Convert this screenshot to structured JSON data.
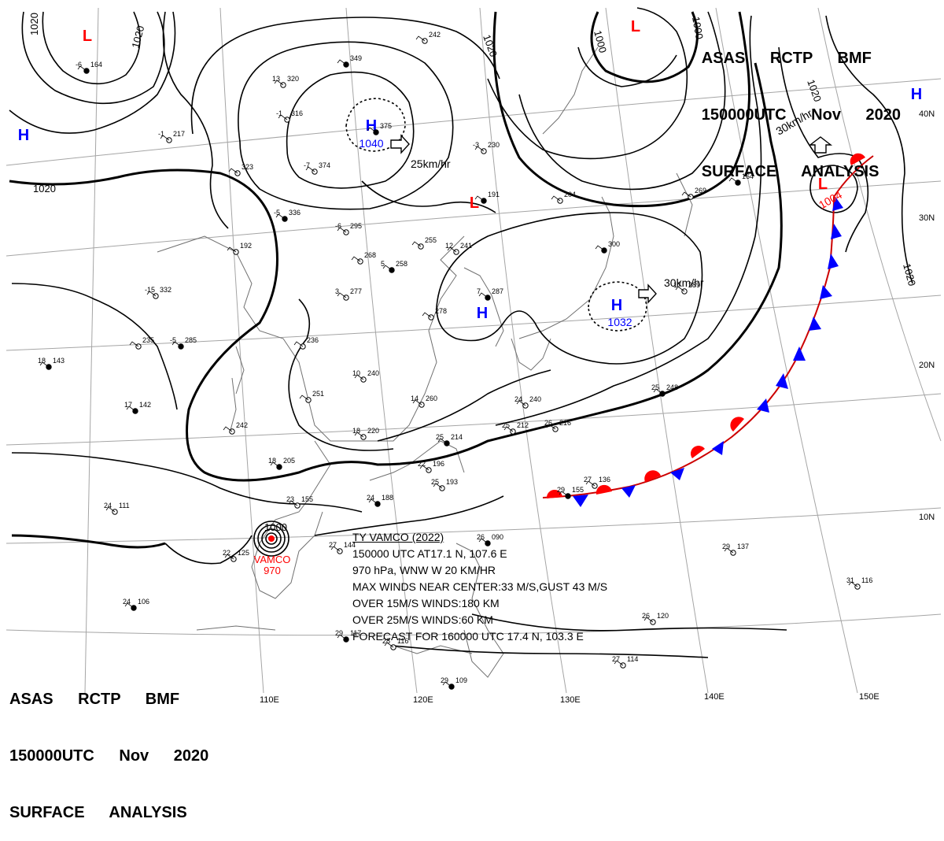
{
  "header": {
    "line1": "ASAS RCTP BMF",
    "line2": "150000UTC Nov 2020",
    "line3": "SURFACE ANALYSIS"
  },
  "pressure_centers": [
    {
      "type": "H",
      "value": "1040",
      "motion": "25km/hr"
    },
    {
      "type": "H",
      "value": "1032",
      "motion": "30km/hr"
    },
    {
      "type": "H",
      "value": ""
    },
    {
      "type": "H",
      "value": ""
    },
    {
      "type": "H",
      "value": ""
    },
    {
      "type": "L",
      "value": "1004",
      "motion": "30km/hr"
    },
    {
      "type": "L",
      "value": ""
    },
    {
      "type": "L",
      "value": ""
    },
    {
      "type": "L",
      "value": ""
    }
  ],
  "isobar_labels": [
    "1020",
    "1020",
    "1020",
    "1020",
    "1000",
    "1000",
    "1020",
    "1020",
    "1000"
  ],
  "typhoon": {
    "name_label": "VAMCO",
    "pressure_label": "970",
    "center_isobar": "1000",
    "bulletin": {
      "line1": "TY VAMCO (2022)",
      "line2": "150000 UTC AT17.1 N, 107.6 E",
      "line3": "970 hPa, WNW W 20 KM/HR",
      "line4": "MAX WINDS NEAR CENTER:33 M/S,GUST 43 M/S",
      "line5": "OVER 15M/S WINDS:180 KM",
      "line6": "OVER 25M/S WINDS:60 KM",
      "line7": "FORECAST FOR 160000 UTC 17.4 N, 103.3 E"
    }
  },
  "longitude_labels": [
    "110E",
    "120E",
    "130E",
    "140E",
    "150E"
  ],
  "latitude_labels": [
    "40N",
    "30N",
    "20N",
    "10N"
  ],
  "station_plots": [
    {
      "t": "-6",
      "p": "164"
    },
    {
      "t": "-1",
      "p": "217"
    },
    {
      "t": "13",
      "p": "320"
    },
    {
      "t": "",
      "p": "349"
    },
    {
      "t": "",
      "p": "242"
    },
    {
      "t": "-1",
      "p": "316"
    },
    {
      "t": "",
      "p": "375"
    },
    {
      "t": "-7",
      "p": "374"
    },
    {
      "t": "",
      "p": "323"
    },
    {
      "t": "-5",
      "p": "336"
    },
    {
      "t": "-6",
      "p": "295"
    },
    {
      "t": "-3",
      "p": "230"
    },
    {
      "t": "",
      "p": "191"
    },
    {
      "t": "",
      "p": "204"
    },
    {
      "t": "",
      "p": "269"
    },
    {
      "t": "",
      "p": "164"
    },
    {
      "t": "",
      "p": "192"
    },
    {
      "t": "",
      "p": "268"
    },
    {
      "t": "5",
      "p": "258"
    },
    {
      "t": "",
      "p": "255"
    },
    {
      "t": "12",
      "p": "241"
    },
    {
      "t": "",
      "p": "300"
    },
    {
      "t": "-15",
      "p": "332"
    },
    {
      "t": "3",
      "p": "277"
    },
    {
      "t": "7",
      "p": "287"
    },
    {
      "t": "17",
      "p": "289"
    },
    {
      "t": "",
      "p": "235"
    },
    {
      "t": "-5",
      "p": "285"
    },
    {
      "t": "",
      "p": "236"
    },
    {
      "t": "",
      "p": "278"
    },
    {
      "t": "18",
      "p": "143"
    },
    {
      "t": "10",
      "p": "240"
    },
    {
      "t": "",
      "p": "251"
    },
    {
      "t": "17",
      "p": "142"
    },
    {
      "t": "14",
      "p": "260"
    },
    {
      "t": "24",
      "p": "240"
    },
    {
      "t": "25",
      "p": "248"
    },
    {
      "t": "",
      "p": "242"
    },
    {
      "t": "18",
      "p": "220"
    },
    {
      "t": "25",
      "p": "214"
    },
    {
      "t": "25",
      "p": "212"
    },
    {
      "t": "26",
      "p": "216"
    },
    {
      "t": "18",
      "p": "205"
    },
    {
      "t": "22",
      "p": "196"
    },
    {
      "t": "25",
      "p": "193"
    },
    {
      "t": "24",
      "p": "188"
    },
    {
      "t": "24",
      "p": "111"
    },
    {
      "t": "27",
      "p": "136"
    },
    {
      "t": "29",
      "p": "155"
    },
    {
      "t": "23",
      "p": "155"
    },
    {
      "t": "27",
      "p": "144"
    },
    {
      "t": "26",
      "p": "090"
    },
    {
      "t": "29",
      "p": "137"
    },
    {
      "t": "22",
      "p": "125"
    },
    {
      "t": "24",
      "p": "106"
    },
    {
      "t": "31",
      "p": "116"
    },
    {
      "t": "26",
      "p": "120"
    },
    {
      "t": "29",
      "p": "117"
    },
    {
      "t": "28",
      "p": "116"
    },
    {
      "t": "27",
      "p": "114"
    },
    {
      "t": "29",
      "p": "109"
    }
  ],
  "colors": {
    "high": "#0000ff",
    "low": "#ff0000",
    "warm_front": "#ff0000",
    "cold_front": "#0000ff",
    "isobar": "#000000",
    "coast": "#6e6e6e",
    "graticule": "#a0a0a0"
  }
}
